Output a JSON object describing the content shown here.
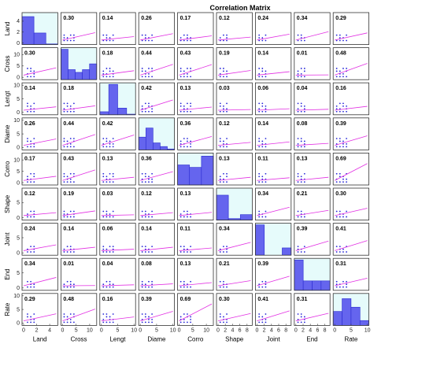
{
  "chart_data": {
    "type": "scatter-matrix",
    "title": "Correlation Matrix",
    "variables": [
      "Land",
      "Cross",
      "Lengt",
      "Diame",
      "Corro",
      "Shape",
      "Joint",
      "End",
      "Rate"
    ],
    "correlations": [
      [
        null,
        0.3,
        0.14,
        0.26,
        0.17,
        0.12,
        0.24,
        0.34,
        0.29
      ],
      [
        0.3,
        null,
        0.18,
        0.44,
        0.43,
        0.19,
        0.14,
        0.01,
        0.48
      ],
      [
        0.14,
        0.18,
        null,
        0.42,
        0.13,
        0.03,
        0.06,
        0.04,
        0.16
      ],
      [
        0.26,
        0.44,
        0.42,
        null,
        0.36,
        0.12,
        0.14,
        0.08,
        0.39
      ],
      [
        0.17,
        0.43,
        0.13,
        0.36,
        null,
        0.13,
        0.11,
        0.13,
        0.69
      ],
      [
        0.12,
        0.19,
        0.03,
        0.12,
        0.13,
        null,
        0.34,
        0.21,
        0.3
      ],
      [
        0.24,
        0.14,
        0.06,
        0.14,
        0.11,
        0.34,
        null,
        0.39,
        0.41
      ],
      [
        0.34,
        0.01,
        0.04,
        0.08,
        0.13,
        0.21,
        0.39,
        null,
        0.31
      ],
      [
        0.29,
        0.48,
        0.16,
        0.39,
        0.69,
        0.3,
        0.41,
        0.31,
        null
      ]
    ],
    "ranges": [
      [
        0,
        5
      ],
      [
        0,
        12
      ],
      [
        0,
        10
      ],
      [
        0,
        10
      ],
      [
        0,
        12
      ],
      [
        0,
        9
      ],
      [
        0,
        9
      ],
      [
        0,
        9
      ],
      [
        0,
        10
      ]
    ],
    "x_ticks": [
      [
        0,
        2,
        4
      ],
      [
        0,
        5,
        10
      ],
      [
        0,
        5,
        10
      ],
      [
        0,
        5,
        10
      ],
      [
        0,
        5,
        10
      ],
      [
        0,
        2,
        4,
        6,
        8
      ],
      [
        0,
        2,
        4,
        6,
        8
      ],
      [
        0,
        2,
        4,
        6,
        8
      ],
      [
        0,
        5,
        10
      ]
    ],
    "y_ticks": [
      [
        0,
        2,
        4
      ],
      [
        0,
        5,
        10
      ],
      [
        0,
        5,
        10
      ],
      [
        0,
        5,
        10
      ],
      [
        0,
        5,
        10
      ],
      [
        0,
        5,
        10
      ],
      [
        0,
        5,
        10
      ],
      [
        0,
        5,
        10
      ],
      [
        0,
        5,
        10
      ]
    ],
    "x_tick_labels": [
      [
        "0",
        "2",
        "4"
      ],
      [
        "0",
        "5",
        "10"
      ],
      [
        "0",
        "5",
        "10"
      ],
      [
        "0",
        "5",
        "10"
      ],
      [
        "0",
        "5",
        "10"
      ],
      [
        "0",
        "2",
        "4",
        "6",
        "8"
      ],
      [
        "0",
        "2",
        "4",
        "6",
        "8"
      ],
      [
        "0",
        "2",
        "4",
        "6",
        "8"
      ],
      [
        "0",
        "5",
        "10"
      ]
    ],
    "y_tick_labels": [
      [
        "0",
        "2",
        "4"
      ],
      [
        "0",
        "5",
        "10"
      ],
      [
        "0",
        "5",
        "10"
      ],
      [
        "0",
        "5",
        "10"
      ],
      [
        "0",
        "5",
        "10"
      ],
      [
        "0",
        "5",
        "10"
      ],
      [
        "0",
        "5",
        "10"
      ],
      [
        "0",
        "5",
        "10"
      ],
      [
        "0",
        "5",
        "10"
      ]
    ],
    "histograms": [
      [
        0.92,
        0.38,
        0.02
      ],
      [
        1.0,
        0.33,
        0.24,
        0.33,
        0.52
      ],
      [
        0.1,
        1.0,
        0.22,
        0.02
      ],
      [
        0.42,
        0.72,
        0.23,
        0.11,
        0.03
      ],
      [
        0.66,
        0.58,
        0.95
      ],
      [
        0.82,
        0.05,
        0.18
      ],
      [
        1.0,
        0.0,
        0.0,
        0.24
      ],
      [
        1.0,
        0.31,
        0.31,
        0.31
      ],
      [
        0.46,
        0.88,
        0.6,
        0.16
      ]
    ],
    "scatter_levels": [
      [
        0,
        1,
        2
      ],
      [
        0,
        1,
        2,
        3
      ],
      [
        0,
        1,
        2,
        3
      ],
      [
        0,
        1,
        2,
        3
      ],
      [
        0,
        1,
        2,
        3
      ],
      [
        0,
        1,
        2
      ],
      [
        0,
        1,
        2
      ],
      [
        0,
        1,
        2
      ],
      [
        0,
        1,
        2,
        3
      ]
    ],
    "grid": false,
    "colors": {
      "hist_fill": "#6565ee",
      "hist_stroke": "#2b2bd0",
      "hist_bg": "#e6fbfb",
      "points": "#2424d8",
      "fit_line": "#e22ee2",
      "axis": "#333333"
    }
  }
}
